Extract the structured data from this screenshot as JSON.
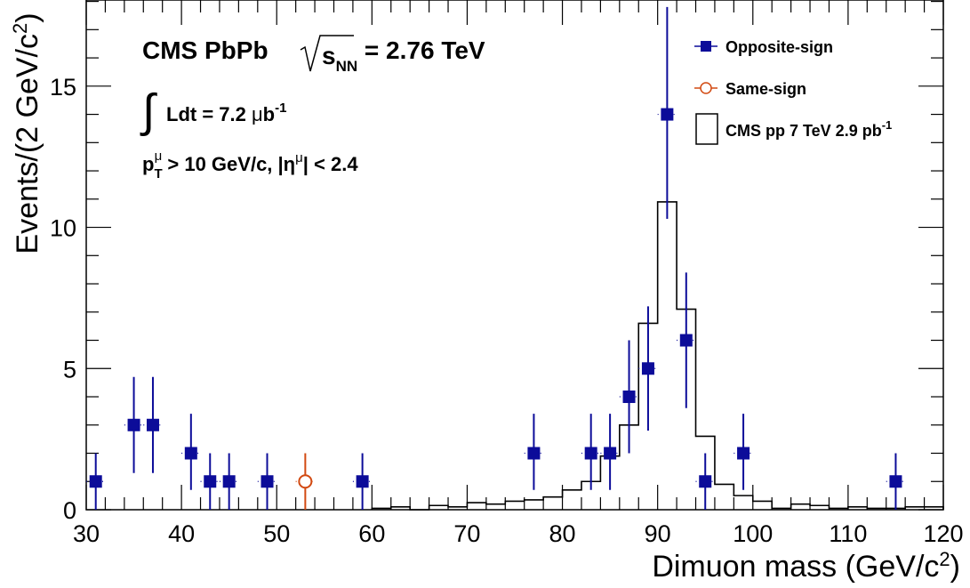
{
  "chart_data": {
    "type": "scatter",
    "xlabel_main": "Dimuon mass (GeV/c",
    "xlabel_sup": "2",
    "xlabel_end": ")",
    "ylabel_main": "Events/(2 GeV/c",
    "ylabel_sup": "2",
    "ylabel_end": ")",
    "xlim": [
      30,
      120
    ],
    "ylim": [
      0,
      18.05
    ],
    "x_ticks": [
      30,
      40,
      50,
      60,
      70,
      80,
      90,
      100,
      110,
      120
    ],
    "y_ticks": [
      0,
      5,
      10,
      15
    ],
    "annotations": {
      "line1_a": "CMS PbPb",
      "line1_sqrt": "s",
      "line1_sub": "NN",
      "line1_b": " = 2.76 TeV",
      "line2_integral": "∫",
      "line2_a": "Ldt = 7.2 ",
      "line2_mu": "μ",
      "line2_b": "b",
      "line2_sup": "-1",
      "line3_p": "p",
      "line3_sub": "T",
      "line3_supmu": "μ",
      "line3_a": " > 10 GeV/c, |η",
      "line3_supmu2": "μ",
      "line3_b": "| < 2.4"
    },
    "legend": {
      "placement": "top-right",
      "entries": [
        {
          "label": "Opposite-sign"
        },
        {
          "label": "Same-sign"
        },
        {
          "label_main": "CMS pp 7 TeV 2.9 pb",
          "label_sup": "-1"
        }
      ]
    },
    "series": [
      {
        "name": "Opposite-sign",
        "marker": "filled-square",
        "color": "#0c0c99",
        "x": [
          31,
          35,
          37,
          41,
          43,
          45,
          49,
          59,
          77,
          83,
          85,
          87,
          89,
          91,
          93,
          95,
          99,
          115
        ],
        "y": [
          1,
          3,
          3,
          2,
          1,
          1,
          1,
          1,
          2,
          2,
          2,
          4,
          5,
          14,
          6,
          1,
          2,
          1
        ],
        "err_low": [
          1,
          1.7,
          1.7,
          1.3,
          1,
          1,
          1,
          1,
          1.3,
          1.3,
          1.3,
          2,
          2.2,
          3.7,
          2.4,
          1,
          1.3,
          1
        ],
        "err_high": [
          1,
          1.7,
          1.7,
          1.4,
          1,
          1,
          1,
          1,
          1.4,
          1.4,
          1.4,
          2,
          2.2,
          3.8,
          2.4,
          1,
          1.4,
          1
        ]
      },
      {
        "name": "Same-sign",
        "marker": "open-circle",
        "color": "#d24a12",
        "x": [
          53
        ],
        "y": [
          1
        ],
        "err_low": [
          1
        ],
        "err_high": [
          1
        ]
      }
    ],
    "histogram": {
      "name": "CMS pp 7 TeV 2.9 pb-1",
      "color": "#000000",
      "bin_edges": [
        60,
        62,
        64,
        66,
        68,
        70,
        72,
        74,
        76,
        78,
        80,
        82,
        84,
        86,
        88,
        90,
        92,
        94,
        96,
        98,
        100,
        102,
        104,
        106,
        108,
        110,
        112,
        114,
        116,
        118,
        120
      ],
      "values": [
        0.05,
        0.1,
        0.0,
        0.15,
        0.1,
        0.25,
        0.2,
        0.3,
        0.35,
        0.45,
        0.7,
        1.0,
        1.9,
        3.0,
        6.6,
        10.9,
        7.1,
        2.6,
        0.9,
        0.5,
        0.3,
        0.05,
        0.2,
        0.15,
        0.05,
        0.1,
        0.05,
        0.05,
        0.1,
        0.1
      ]
    }
  }
}
